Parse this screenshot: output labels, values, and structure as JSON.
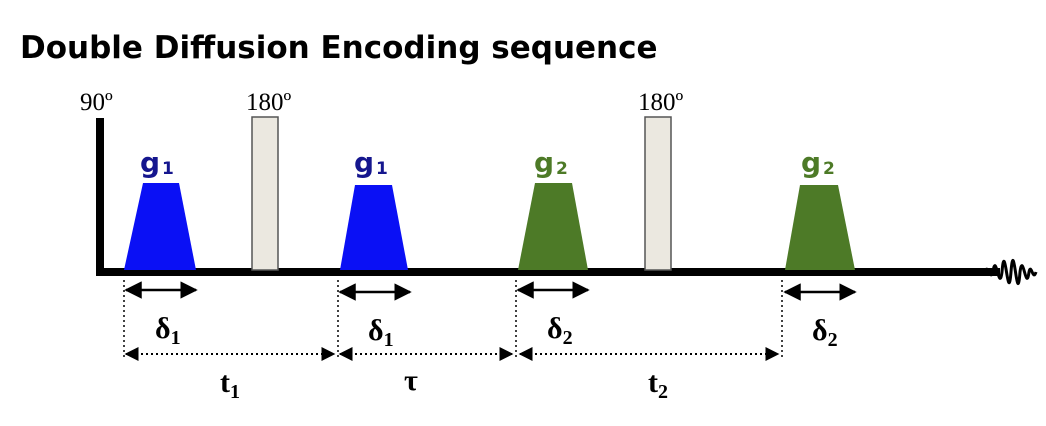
{
  "title": "Double Diffusion Encoding sequence",
  "rf_pulses": [
    {
      "label": "90º"
    },
    {
      "label": "180º"
    },
    {
      "label": "180º"
    }
  ],
  "gradients": [
    {
      "label": "g",
      "sub": "1"
    },
    {
      "label": "g",
      "sub": "1"
    },
    {
      "label": "g",
      "sub": "2"
    },
    {
      "label": "g",
      "sub": "2"
    }
  ],
  "durations": [
    {
      "label": "δ",
      "sub": "1"
    },
    {
      "label": "δ",
      "sub": "1"
    },
    {
      "label": "δ",
      "sub": "2"
    },
    {
      "label": "δ",
      "sub": "2"
    }
  ],
  "intervals": [
    {
      "label": "t",
      "sub": "1"
    },
    {
      "label": "τ"
    },
    {
      "label": "t",
      "sub": "2"
    }
  ]
}
